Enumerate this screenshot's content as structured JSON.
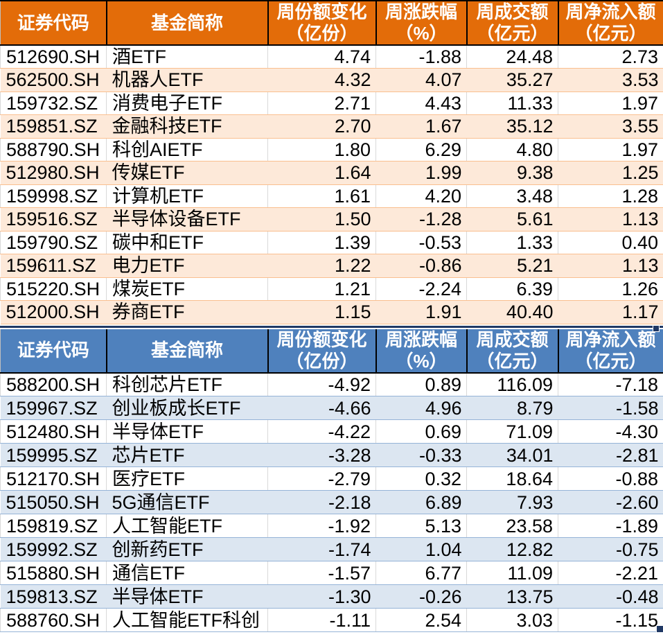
{
  "sheet": {
    "selection_color": "#1F3864",
    "gridline_color": "#D9D9D9"
  },
  "tables": [
    {
      "name": "weekly-net-inflow-table",
      "theme": "orange",
      "header_bg": "#E36C09",
      "stripe_bg": "#FDE9D9",
      "row_border": "#FABF8F",
      "headers": [
        "证券代码",
        "基金简称",
        "周份额变化\n（亿份）",
        "周涨跌幅\n（%）",
        "周成交额\n（亿元）",
        "周净流入额\n（亿元）"
      ],
      "field_order": [
        "code",
        "name",
        "share_change",
        "pct_change",
        "turnover",
        "net_flow"
      ],
      "rows": [
        {
          "code": "512690.SH",
          "name": "酒ETF",
          "share_change": "4.74",
          "pct_change": "-1.88",
          "turnover": "24.48",
          "net_flow": "2.73"
        },
        {
          "code": "562500.SH",
          "name": "机器人ETF",
          "share_change": "4.32",
          "pct_change": "4.07",
          "turnover": "35.27",
          "net_flow": "3.53"
        },
        {
          "code": "159732.SZ",
          "name": "消费电子ETF",
          "share_change": "2.71",
          "pct_change": "4.43",
          "turnover": "11.33",
          "net_flow": "1.97"
        },
        {
          "code": "159851.SZ",
          "name": "金融科技ETF",
          "share_change": "2.70",
          "pct_change": "1.67",
          "turnover": "35.12",
          "net_flow": "3.55"
        },
        {
          "code": "588790.SH",
          "name": "科创AIETF",
          "share_change": "1.80",
          "pct_change": "6.29",
          "turnover": "4.80",
          "net_flow": "1.97"
        },
        {
          "code": "512980.SH",
          "name": "传媒ETF",
          "share_change": "1.64",
          "pct_change": "1.99",
          "turnover": "9.38",
          "net_flow": "1.25"
        },
        {
          "code": "159998.SZ",
          "name": "计算机ETF",
          "share_change": "1.61",
          "pct_change": "4.20",
          "turnover": "3.48",
          "net_flow": "1.28"
        },
        {
          "code": "159516.SZ",
          "name": "半导体设备ETF",
          "share_change": "1.50",
          "pct_change": "-1.28",
          "turnover": "5.61",
          "net_flow": "1.13"
        },
        {
          "code": "159790.SZ",
          "name": "碳中和ETF",
          "share_change": "1.39",
          "pct_change": "-0.53",
          "turnover": "1.33",
          "net_flow": "0.40"
        },
        {
          "code": "159611.SZ",
          "name": "电力ETF",
          "share_change": "1.22",
          "pct_change": "-0.86",
          "turnover": "5.21",
          "net_flow": "1.13"
        },
        {
          "code": "515220.SH",
          "name": "煤炭ETF",
          "share_change": "1.21",
          "pct_change": "-2.24",
          "turnover": "6.39",
          "net_flow": "1.26"
        },
        {
          "code": "512000.SH",
          "name": "券商ETF",
          "share_change": "1.15",
          "pct_change": "1.91",
          "turnover": "40.40",
          "net_flow": "1.17"
        }
      ]
    },
    {
      "name": "weekly-net-outflow-table",
      "theme": "blue",
      "header_bg": "#4F81BD",
      "stripe_bg": "#DCE6F1",
      "row_border": "#95B3D7",
      "headers": [
        "证券代码",
        "基金简称",
        "周份额变化\n（亿份）",
        "周涨跌幅\n（%）",
        "周成交额\n（亿元）",
        "周净流入额\n（亿元）"
      ],
      "field_order": [
        "code",
        "name",
        "share_change",
        "pct_change",
        "turnover",
        "net_flow"
      ],
      "rows": [
        {
          "code": "588200.SH",
          "name": "科创芯片ETF",
          "share_change": "-4.92",
          "pct_change": "0.89",
          "turnover": "116.09",
          "net_flow": "-7.18"
        },
        {
          "code": "159967.SZ",
          "name": "创业板成长ETF",
          "share_change": "-4.66",
          "pct_change": "4.96",
          "turnover": "8.79",
          "net_flow": "-1.58"
        },
        {
          "code": "512480.SH",
          "name": "半导体ETF",
          "share_change": "-4.22",
          "pct_change": "0.69",
          "turnover": "71.09",
          "net_flow": "-4.30"
        },
        {
          "code": "159995.SZ",
          "name": "芯片ETF",
          "share_change": "-3.28",
          "pct_change": "-0.33",
          "turnover": "34.01",
          "net_flow": "-2.81"
        },
        {
          "code": "512170.SH",
          "name": "医疗ETF",
          "share_change": "-2.79",
          "pct_change": "0.32",
          "turnover": "18.64",
          "net_flow": "-0.88"
        },
        {
          "code": "515050.SH",
          "name": "5G通信ETF",
          "share_change": "-2.18",
          "pct_change": "6.89",
          "turnover": "7.93",
          "net_flow": "-2.60"
        },
        {
          "code": "159819.SZ",
          "name": "人工智能ETF",
          "share_change": "-1.92",
          "pct_change": "5.13",
          "turnover": "23.58",
          "net_flow": "-1.89"
        },
        {
          "code": "159992.SZ",
          "name": "创新药ETF",
          "share_change": "-1.74",
          "pct_change": "1.04",
          "turnover": "12.82",
          "net_flow": "-0.75"
        },
        {
          "code": "515880.SH",
          "name": "通信ETF",
          "share_change": "-1.57",
          "pct_change": "6.77",
          "turnover": "11.09",
          "net_flow": "-2.21"
        },
        {
          "code": "159813.SZ",
          "name": "半导体ETF",
          "share_change": "-1.30",
          "pct_change": "-0.26",
          "turnover": "13.75",
          "net_flow": "-0.48"
        },
        {
          "code": "588760.SH",
          "name": "人工智能ETF科创",
          "share_change": "-1.11",
          "pct_change": "2.54",
          "turnover": "3.03",
          "net_flow": "-1.15"
        }
      ]
    }
  ]
}
